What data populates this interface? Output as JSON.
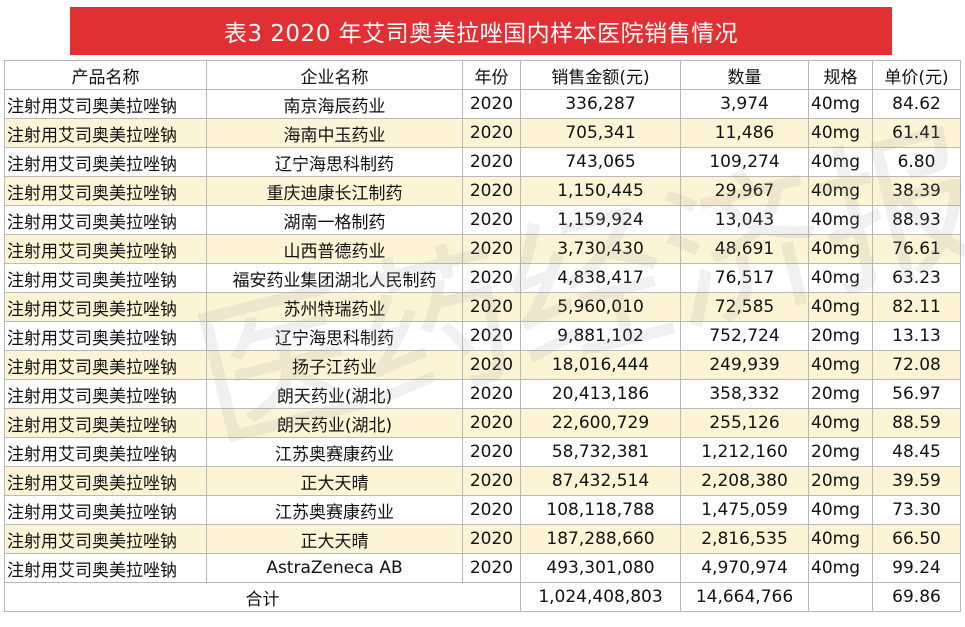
{
  "title": "表3    2020 年艾司奥美拉唑国内样本医院销售情况",
  "watermark": "医药经济报",
  "headers": [
    "产品名称",
    "企业名称",
    "年份",
    "销售金额(元)",
    "数量",
    "规格",
    "单价(元)"
  ],
  "rows": [
    [
      "注射用艾司奥美拉唑钠",
      "南京海辰药业",
      "2020",
      "336,287",
      "3,974",
      "40mg",
      "84.62"
    ],
    [
      "注射用艾司奥美拉唑钠",
      "海南中玉药业",
      "2020",
      "705,341",
      "11,486",
      "40mg",
      "61.41"
    ],
    [
      "注射用艾司奥美拉唑钠",
      "辽宁海思科制药",
      "2020",
      "743,065",
      "109,274",
      "40mg",
      "6.80"
    ],
    [
      "注射用艾司奥美拉唑钠",
      "重庆迪康长江制药",
      "2020",
      "1,150,445",
      "29,967",
      "40mg",
      "38.39"
    ],
    [
      "注射用艾司奥美拉唑钠",
      "湖南一格制药",
      "2020",
      "1,159,924",
      "13,043",
      "40mg",
      "88.93"
    ],
    [
      "注射用艾司奥美拉唑钠",
      "山西普德药业",
      "2020",
      "3,730,430",
      "48,691",
      "40mg",
      "76.61"
    ],
    [
      "注射用艾司奥美拉唑钠",
      "福安药业集团湖北人民制药",
      "2020",
      "4,838,417",
      "76,517",
      "40mg",
      "63.23"
    ],
    [
      "注射用艾司奥美拉唑钠",
      "苏州特瑞药业",
      "2020",
      "5,960,010",
      "72,585",
      "40mg",
      "82.11"
    ],
    [
      "注射用艾司奥美拉唑钠",
      "辽宁海思科制药",
      "2020",
      "9,881,102",
      "752,724",
      "20mg",
      "13.13"
    ],
    [
      "注射用艾司奥美拉唑钠",
      "扬子江药业",
      "2020",
      "18,016,444",
      "249,939",
      "40mg",
      "72.08"
    ],
    [
      "注射用艾司奥美拉唑钠",
      "朗天药业(湖北)",
      "2020",
      "20,413,186",
      "358,332",
      "20mg",
      "56.97"
    ],
    [
      "注射用艾司奥美拉唑钠",
      "朗天药业(湖北)",
      "2020",
      "22,600,729",
      "255,126",
      "40mg",
      "88.59"
    ],
    [
      "注射用艾司奥美拉唑钠",
      "江苏奥赛康药业",
      "2020",
      "58,732,381",
      "1,212,160",
      "20mg",
      "48.45"
    ],
    [
      "注射用艾司奥美拉唑钠",
      "正大天晴",
      "2020",
      "87,432,514",
      "2,208,380",
      "20mg",
      "39.59"
    ],
    [
      "注射用艾司奥美拉唑钠",
      "江苏奥赛康药业",
      "2020",
      "108,118,788",
      "1,475,059",
      "40mg",
      "73.30"
    ],
    [
      "注射用艾司奥美拉唑钠",
      "正大天晴",
      "2020",
      "187,288,660",
      "2,816,535",
      "40mg",
      "66.50"
    ],
    [
      "注射用艾司奥美拉唑钠",
      "AstraZeneca  AB",
      "2020",
      "493,301,080",
      "4,970,974",
      "40mg",
      "99.24"
    ]
  ],
  "total": {
    "label": "合计",
    "amount": "1,024,408,803",
    "quantity": "14,664,766",
    "spec": "",
    "unit_price": "69.86"
  }
}
